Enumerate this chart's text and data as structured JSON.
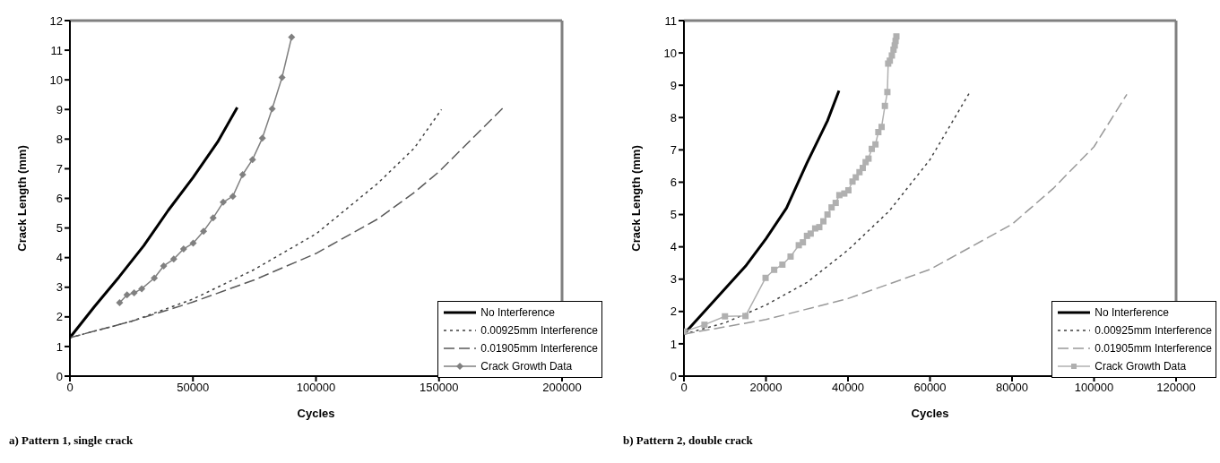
{
  "chart_data": [
    {
      "type": "line",
      "xlabel": "Cycles",
      "ylabel": "Crack Length (mm)",
      "xlim": [
        0,
        200000
      ],
      "xticks": [
        0,
        50000,
        100000,
        150000,
        200000
      ],
      "ylim": [
        0,
        12
      ],
      "yticks": [
        0,
        1,
        2,
        3,
        4,
        5,
        6,
        7,
        8,
        9,
        10,
        11,
        12
      ],
      "legend": "bottom right",
      "annotations": [
        "a) Pattern 1, single crack"
      ],
      "series": [
        {
          "name": "No Interference",
          "color": "#000000",
          "line_style": "solid",
          "marker": "none",
          "x": [
            0,
            10000,
            20000,
            30000,
            40000,
            50000,
            60000,
            68000
          ],
          "values": [
            1.3,
            2.35,
            3.35,
            4.4,
            5.6,
            6.7,
            7.9,
            9.07
          ]
        },
        {
          "name": "0.00925mm Interference",
          "color": "#404040",
          "line_style": "dotted",
          "marker": "none",
          "x": [
            0,
            25000,
            50000,
            75000,
            100000,
            125000,
            140000,
            151000
          ],
          "values": [
            1.3,
            1.85,
            2.6,
            3.6,
            4.8,
            6.5,
            7.7,
            9.0
          ]
        },
        {
          "name": "0.01905mm Interference",
          "color": "#595959",
          "line_style": "dashed",
          "marker": "none",
          "x": [
            0,
            25000,
            50000,
            75000,
            100000,
            125000,
            140000,
            150000,
            176000
          ],
          "values": [
            1.3,
            1.85,
            2.5,
            3.25,
            4.14,
            5.3,
            6.2,
            6.9,
            9.05
          ]
        },
        {
          "name": "Crack Growth Data",
          "color": "#808080",
          "line_style": "solid",
          "marker": "diamond",
          "x": [
            20200,
            23200,
            26100,
            29200,
            34300,
            38100,
            42200,
            46200,
            50100,
            54300,
            58200,
            62300,
            66200,
            70200,
            74200,
            78200,
            82200,
            86200,
            90100
          ],
          "values": [
            2.48,
            2.74,
            2.81,
            2.95,
            3.31,
            3.72,
            3.95,
            4.29,
            4.49,
            4.89,
            5.34,
            5.87,
            6.07,
            6.8,
            7.31,
            8.03,
            9.02,
            10.08,
            11.44
          ]
        }
      ]
    },
    {
      "type": "line",
      "xlabel": "Cycles",
      "ylabel": "Crack Length (mm)",
      "xlim": [
        0,
        120000
      ],
      "xticks": [
        0,
        20000,
        40000,
        60000,
        80000,
        100000,
        120000
      ],
      "ylim": [
        0,
        11
      ],
      "yticks": [
        0,
        1,
        2,
        3,
        4,
        5,
        6,
        7,
        8,
        9,
        10,
        11
      ],
      "legend": "bottom right",
      "annotations": [
        "b) Pattern 2, double crack"
      ],
      "series": [
        {
          "name": "No Interference",
          "color": "#000000",
          "line_style": "solid",
          "marker": "none",
          "x": [
            0,
            5000,
            10000,
            15000,
            20000,
            25000,
            30000,
            35000,
            37800
          ],
          "values": [
            1.3,
            2.0,
            2.7,
            3.4,
            4.25,
            5.2,
            6.6,
            7.9,
            8.83
          ]
        },
        {
          "name": "0.00925mm Interference",
          "color": "#404040",
          "line_style": "dotted",
          "marker": "none",
          "x": [
            0,
            10000,
            20000,
            30000,
            40000,
            50000,
            60000,
            69500
          ],
          "values": [
            1.3,
            1.65,
            2.2,
            2.9,
            3.9,
            5.1,
            6.7,
            8.74
          ]
        },
        {
          "name": "0.01905mm Interference",
          "color": "#999999",
          "line_style": "dashed",
          "marker": "none",
          "x": [
            0,
            20000,
            40000,
            60000,
            80000,
            90000,
            100000,
            108000
          ],
          "values": [
            1.3,
            1.75,
            2.4,
            3.3,
            4.7,
            5.8,
            7.1,
            8.72
          ]
        },
        {
          "name": "Crack Growth Data",
          "color": "#b0b0b0",
          "line_style": "solid",
          "marker": "square",
          "x": [
            0,
            5000,
            10000,
            15000,
            19900,
            22000,
            24000,
            26000,
            28000,
            29000,
            30000,
            30900,
            32000,
            33000,
            34000,
            35000,
            36000,
            37000,
            37900,
            39100,
            40100,
            41100,
            41900,
            42800,
            43600,
            44300,
            45000,
            45800,
            46700,
            47400,
            48200,
            49000,
            49600,
            49800,
            50200,
            50700,
            51100,
            51400,
            51600,
            51800
          ],
          "values": [
            1.38,
            1.59,
            1.85,
            1.86,
            3.04,
            3.29,
            3.45,
            3.7,
            4.05,
            4.14,
            4.34,
            4.41,
            4.57,
            4.61,
            4.79,
            5.0,
            5.22,
            5.36,
            5.6,
            5.65,
            5.75,
            6.02,
            6.15,
            6.31,
            6.44,
            6.62,
            6.73,
            7.03,
            7.17,
            7.55,
            7.71,
            8.36,
            8.79,
            9.67,
            9.76,
            9.92,
            10.1,
            10.23,
            10.37,
            10.51
          ]
        }
      ]
    }
  ]
}
